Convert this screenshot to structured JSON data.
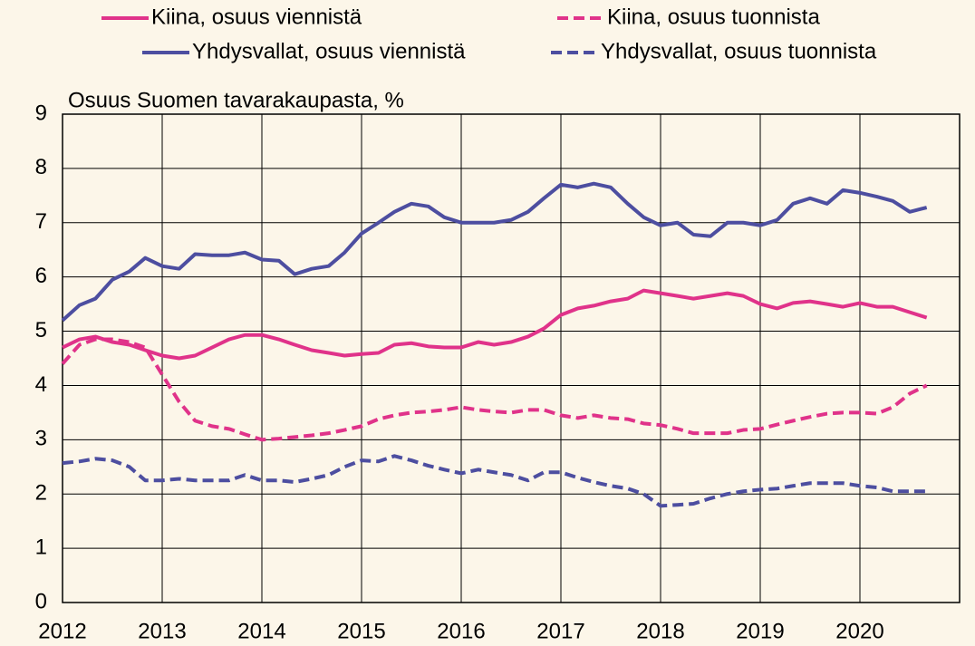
{
  "chart_data": {
    "type": "line",
    "y_label": "Osuus Suomen tavarakaupasta, %",
    "x": [
      2012,
      2012.17,
      2012.33,
      2012.5,
      2012.67,
      2012.83,
      2013,
      2013.17,
      2013.33,
      2013.5,
      2013.67,
      2013.83,
      2014,
      2014.17,
      2014.33,
      2014.5,
      2014.67,
      2014.83,
      2015,
      2015.17,
      2015.33,
      2015.5,
      2015.67,
      2015.83,
      2016,
      2016.17,
      2016.33,
      2016.5,
      2016.67,
      2016.83,
      2017,
      2017.17,
      2017.33,
      2017.5,
      2017.67,
      2017.83,
      2018,
      2018.17,
      2018.33,
      2018.5,
      2018.67,
      2018.83,
      2019,
      2019.17,
      2019.33,
      2019.5,
      2019.67,
      2019.83,
      2020,
      2020.17,
      2020.33,
      2020.5,
      2020.67
    ],
    "series": [
      {
        "name": "Kiina, osuus viennistä",
        "color": "#e0338a",
        "dashed": false,
        "values": [
          4.7,
          4.85,
          4.9,
          4.8,
          4.75,
          4.65,
          4.55,
          4.5,
          4.55,
          4.7,
          4.85,
          4.93,
          4.93,
          4.85,
          4.75,
          4.65,
          4.6,
          4.55,
          4.58,
          4.6,
          4.75,
          4.78,
          4.72,
          4.7,
          4.7,
          4.8,
          4.75,
          4.8,
          4.9,
          5.05,
          5.3,
          5.42,
          5.47,
          5.55,
          5.6,
          5.75,
          5.7,
          5.65,
          5.6,
          5.65,
          5.7,
          5.65,
          5.5,
          5.42,
          5.52,
          5.55,
          5.5,
          5.45,
          5.52,
          5.45,
          5.45,
          5.35,
          5.25
        ]
      },
      {
        "name": "Kiina, osuus tuonnista",
        "color": "#e0338a",
        "dashed": true,
        "values": [
          4.4,
          4.75,
          4.85,
          4.85,
          4.8,
          4.7,
          4.2,
          3.7,
          3.35,
          3.25,
          3.2,
          3.1,
          3.0,
          3.02,
          3.05,
          3.08,
          3.12,
          3.18,
          3.25,
          3.38,
          3.45,
          3.5,
          3.52,
          3.55,
          3.6,
          3.55,
          3.52,
          3.5,
          3.55,
          3.55,
          3.45,
          3.4,
          3.45,
          3.4,
          3.38,
          3.3,
          3.27,
          3.2,
          3.12,
          3.12,
          3.12,
          3.18,
          3.2,
          3.28,
          3.35,
          3.42,
          3.48,
          3.5,
          3.5,
          3.48,
          3.6,
          3.85,
          4.0
        ]
      },
      {
        "name": "Yhdysvallat, osuus viennistä",
        "color": "#4d4ea0",
        "dashed": false,
        "values": [
          5.2,
          5.48,
          5.6,
          5.95,
          6.1,
          6.35,
          6.2,
          6.15,
          6.42,
          6.4,
          6.4,
          6.45,
          6.32,
          6.3,
          6.05,
          6.15,
          6.2,
          6.45,
          6.8,
          7.0,
          7.2,
          7.35,
          7.3,
          7.1,
          7.0,
          7.0,
          7.0,
          7.05,
          7.2,
          7.45,
          7.7,
          7.65,
          7.72,
          7.65,
          7.35,
          7.1,
          6.95,
          7.0,
          6.78,
          6.75,
          7.0,
          7.0,
          6.95,
          7.05,
          7.35,
          7.45,
          7.35,
          7.6,
          7.55,
          7.48,
          7.4,
          7.2,
          7.28
        ]
      },
      {
        "name": "Yhdysvallat, osuus tuonnista",
        "color": "#4d4ea0",
        "dashed": true,
        "values": [
          2.57,
          2.6,
          2.65,
          2.62,
          2.5,
          2.25,
          2.25,
          2.28,
          2.25,
          2.25,
          2.25,
          2.35,
          2.25,
          2.25,
          2.22,
          2.28,
          2.35,
          2.5,
          2.62,
          2.6,
          2.7,
          2.62,
          2.52,
          2.45,
          2.38,
          2.45,
          2.4,
          2.35,
          2.25,
          2.4,
          2.4,
          2.3,
          2.22,
          2.15,
          2.1,
          2.0,
          1.78,
          1.8,
          1.82,
          1.92,
          2.0,
          2.05,
          2.08,
          2.1,
          2.15,
          2.2,
          2.2,
          2.2,
          2.15,
          2.12,
          2.05,
          2.05,
          2.05
        ]
      }
    ],
    "xlim": [
      2012,
      2021
    ],
    "xticks": [
      2012,
      2013,
      2014,
      2015,
      2016,
      2017,
      2018,
      2019,
      2020
    ],
    "ylim": [
      0,
      9
    ],
    "yticks": [
      0,
      1,
      2,
      3,
      4,
      5,
      6,
      7,
      8,
      9
    ],
    "grid": true
  }
}
